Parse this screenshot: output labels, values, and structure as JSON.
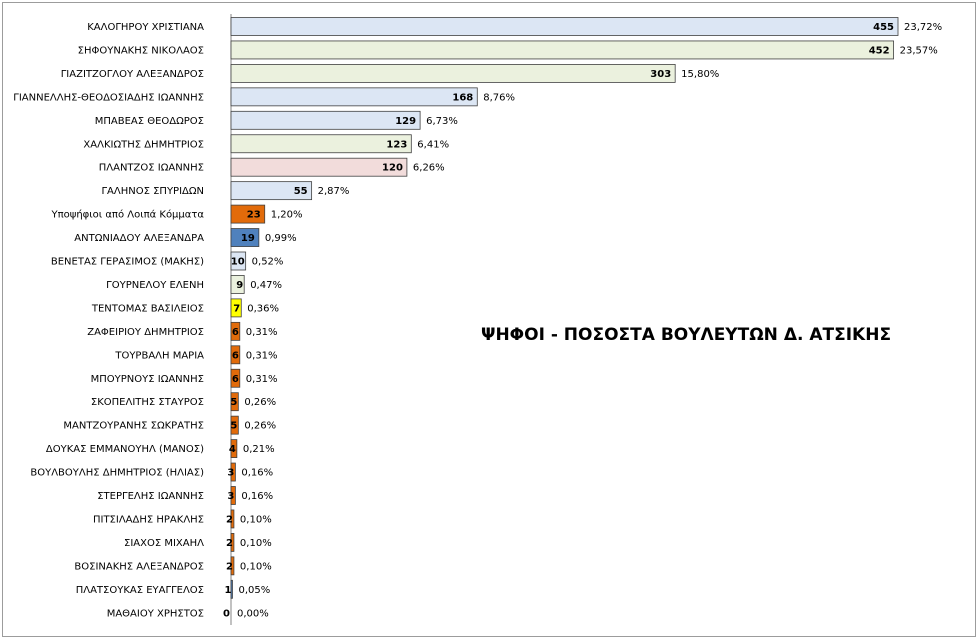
{
  "chart_data": {
    "type": "bar",
    "orientation": "horizontal",
    "title": "ΨΗΦΟΙ - ΠΟΣΟΣΤΑ ΒΟΥΛΕΥΤΩΝ Δ. ΑΤΣΙΚΗΣ",
    "xlabel": "",
    "ylabel": "",
    "xlim": [
      0,
      500
    ],
    "grid": false,
    "legend": "none",
    "categories": [
      "ΚΑΛΟΓΗΡΟΥ ΧΡΙΣΤΙΑΝΑ",
      "ΣΗΦΟΥΝΑΚΗΣ ΝΙΚΟΛΑΟΣ",
      "ΓΙΑΖΙΤΖΟΓΛΟΥ ΑΛΕΞΑΝΔΡΟΣ",
      "ΓΙΑΝΝΕΛΛΗΣ-ΘΕΟΔΟΣΙΑΔΗΣ ΙΩΑΝΝΗΣ",
      "ΜΠΑΒΕΑΣ ΘΕΟΔΩΡΟΣ",
      "ΧΑΛΚΙΩΤΗΣ ΔΗΜΗΤΡΙΟΣ",
      "ΠΛΑΝΤΖΟΣ ΙΩΑΝΝΗΣ",
      "ΓΑΛΗΝΟΣ ΣΠΥΡΙΔΩΝ",
      "Υποψήφιοι από Λοιπά Κόμματα",
      "ΑΝΤΩΝΙΑΔΟΥ ΑΛΕΞΑΝΔΡΑ",
      "ΒΕΝΕΤΑΣ ΓΕΡΑΣΙΜΟΣ (ΜΑΚΗΣ)",
      "ΓΟΥΡΝΕΛΟΥ ΕΛΕΝΗ",
      "ΤΕΝΤΟΜΑΣ ΒΑΣΙΛΕΙΟΣ",
      "ΖΑΦΕΙΡΙΟΥ ΔΗΜΗΤΡΙΟΣ",
      "ΤΟΥΡΒΑΛΗ ΜΑΡΙΑ",
      "ΜΠΟΥΡΝΟΥΣ ΙΩΑΝΝΗΣ",
      "ΣΚΟΠΕΛΙΤΗΣ ΣΤΑΥΡΟΣ",
      "ΜΑΝΤΖΟΥΡΑΝΗΣ ΣΩΚΡΑΤΗΣ",
      "ΔΟΥΚΑΣ ΕΜΜΑΝΟΥΗΛ (ΜΑΝΟΣ)",
      "ΒΟΥΛΒΟΥΛΗΣ ΔΗΜΗΤΡΙΟΣ (ΗΛΙΑΣ)",
      "ΣΤΕΡΓΕΛΗΣ ΙΩΑΝΝΗΣ",
      "ΠΙΤΣΙΛΑΔΗΣ ΗΡΑΚΛΗΣ",
      "ΣΙΑΧΟΣ ΜΙΧΑΗΛ",
      "ΒΟΣΙΝΑΚΗΣ ΑΛΕΞΑΝΔΡΟΣ",
      "ΠΛΑΤΣΟΥΚΑΣ ΕΥΑΓΓΕΛΟΣ",
      "ΜΑΘΑΙΟΥ ΧΡΗΣΤΟΣ"
    ],
    "values": [
      455,
      452,
      303,
      168,
      129,
      123,
      120,
      55,
      23,
      19,
      10,
      9,
      7,
      6,
      6,
      6,
      5,
      5,
      4,
      3,
      3,
      2,
      2,
      2,
      1,
      0
    ],
    "percents": [
      "23,72%",
      "23,57%",
      "15,80%",
      "8,76%",
      "6,73%",
      "6,41%",
      "6,26%",
      "2,87%",
      "1,20%",
      "0,99%",
      "0,52%",
      "0,47%",
      "0,36%",
      "0,31%",
      "0,31%",
      "0,31%",
      "0,26%",
      "0,26%",
      "0,21%",
      "0,16%",
      "0,16%",
      "0,10%",
      "0,10%",
      "0,10%",
      "0,05%",
      "0,00%"
    ],
    "bar_colors": [
      "#dce6f4",
      "#ebf1de",
      "#ebf1de",
      "#dce6f4",
      "#dce6f4",
      "#ebf1de",
      "#f2dcdb",
      "#dce6f4",
      "#e26b0a",
      "#4f81bd",
      "#dce6f4",
      "#ebf1de",
      "#ffff00",
      "#e26b0a",
      "#e26b0a",
      "#e26b0a",
      "#e26b0a",
      "#e26b0a",
      "#e26b0a",
      "#e26b0a",
      "#e26b0a",
      "#e26b0a",
      "#e26b0a",
      "#e26b0a",
      "#4f81bd",
      "#e26b0a"
    ]
  }
}
